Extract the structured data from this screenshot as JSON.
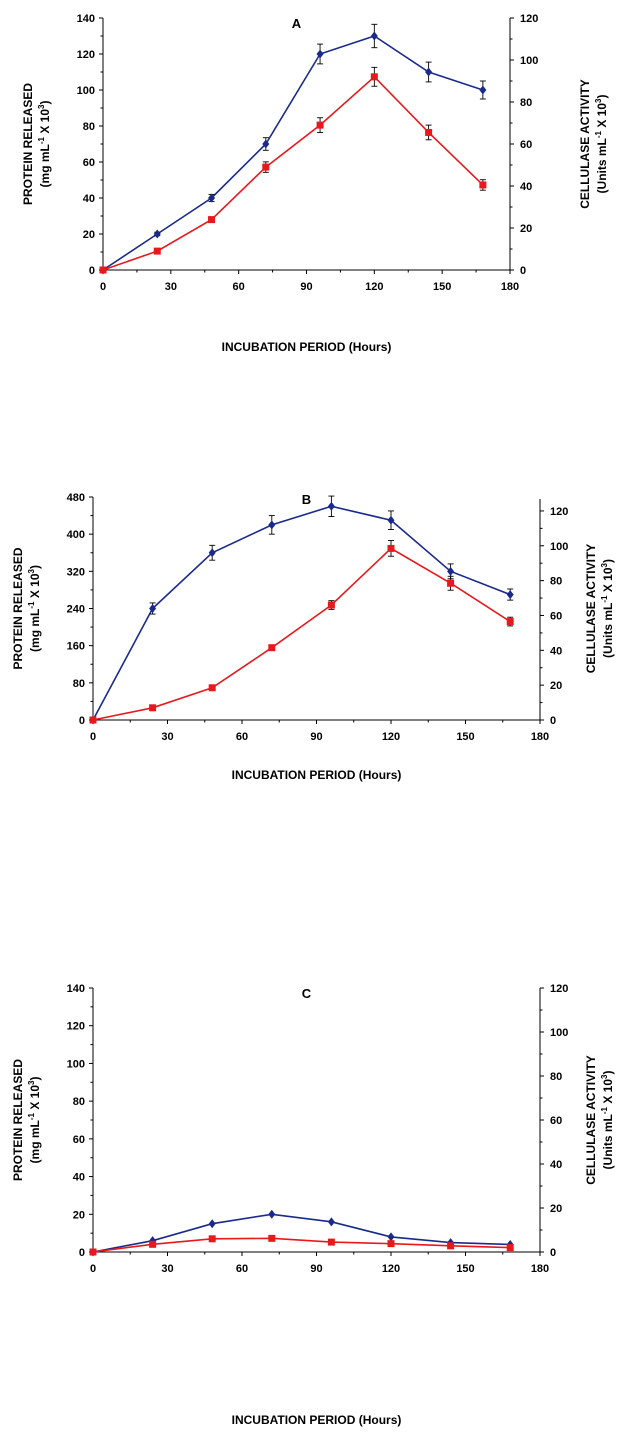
{
  "chart_data": [
    {
      "type": "line",
      "panel_label": "A",
      "xlabel": "INCUBATION PERIOD (Hours)",
      "ylabel": [
        "PROTEIN RELEASED",
        "(mg mL",
        "-1",
        " X 10",
        "3",
        ")"
      ],
      "y2label": [
        "CELLULASE ACTIVITY",
        "(Units mL",
        "-1",
        " X 10",
        "3",
        ")"
      ],
      "xlim": [
        0,
        180
      ],
      "xticks": [
        0,
        30,
        60,
        90,
        120,
        150,
        180
      ],
      "ylim": [
        0,
        140
      ],
      "yticks": [
        0,
        20,
        40,
        60,
        80,
        100,
        120,
        140
      ],
      "y2lim": [
        0,
        120
      ],
      "y2ticks": [
        0,
        20,
        40,
        60,
        80,
        100,
        120
      ],
      "x": [
        0,
        24,
        48,
        72,
        96,
        120,
        144,
        168
      ],
      "series": [
        {
          "axis": "left",
          "color": "#1a2a8c",
          "marker": "diamond",
          "values": [
            0,
            20,
            40,
            70,
            120,
            130,
            110,
            100
          ],
          "errors": [
            0,
            1,
            2,
            3.5,
            5.5,
            6.5,
            5.5,
            5
          ]
        },
        {
          "axis": "right",
          "color": "#e8191d",
          "marker": "square",
          "values": [
            0,
            9,
            24,
            49,
            69,
            92,
            65.5,
            40.5
          ],
          "errors": [
            0,
            0.5,
            1,
            2.5,
            3.5,
            4.5,
            3.5,
            2.5
          ]
        }
      ]
    },
    {
      "type": "line",
      "panel_label": "B",
      "xlabel": "INCUBATION PERIOD (Hours)",
      "ylabel": [
        "PROTEIN RELEASED",
        "(mg mL",
        "-1",
        " X 10",
        "3",
        ")"
      ],
      "y2label": [
        "CELLULASE ACTIVITY",
        "(Units mL",
        "-1",
        " X 10",
        "3",
        ")"
      ],
      "xlim": [
        0,
        180
      ],
      "xticks": [
        0,
        30,
        60,
        90,
        120,
        150,
        180
      ],
      "ylim": [
        0,
        480
      ],
      "yticks": [
        0,
        80,
        160,
        240,
        320,
        400,
        480
      ],
      "y2lim": [
        0,
        128
      ],
      "y2ticks": [
        0,
        20,
        40,
        60,
        80,
        100,
        120
      ],
      "x": [
        0,
        24,
        48,
        72,
        96,
        120,
        144,
        168
      ],
      "series": [
        {
          "axis": "left",
          "color": "#1a2a8c",
          "marker": "diamond",
          "values": [
            0,
            240,
            360,
            420,
            460,
            430,
            320,
            270
          ],
          "errors": [
            0,
            12,
            16,
            20,
            22,
            20,
            16,
            12
          ]
        },
        {
          "axis": "right",
          "color": "#e8191d",
          "marker": "square",
          "values": [
            0,
            7,
            18.5,
            41.5,
            66,
            98.5,
            78.5,
            56.5
          ],
          "errors": [
            0,
            0.5,
            0.5,
            1.5,
            2.5,
            4.5,
            4,
            2.5
          ]
        }
      ]
    },
    {
      "type": "line",
      "panel_label": "C",
      "xlabel": "INCUBATION PERIOD (Hours)",
      "ylabel": [
        "PROTEIN RELEASED",
        "(mg mL",
        "-1",
        " X 10",
        "3",
        ")"
      ],
      "y2label": [
        "CELLULASE ACTIVITY",
        "(Units mL",
        "-1",
        " X 10",
        "3",
        ")"
      ],
      "xlim": [
        0,
        180
      ],
      "xticks": [
        0,
        30,
        60,
        90,
        120,
        150,
        180
      ],
      "ylim": [
        0,
        140
      ],
      "yticks": [
        0,
        20,
        40,
        60,
        80,
        100,
        120,
        140
      ],
      "y2lim": [
        0,
        120
      ],
      "y2ticks": [
        0,
        20,
        40,
        60,
        80,
        100,
        120
      ],
      "x": [
        0,
        24,
        48,
        72,
        96,
        120,
        144,
        168
      ],
      "series": [
        {
          "axis": "left",
          "color": "#1a2a8c",
          "marker": "diamond",
          "values": [
            0,
            6,
            15,
            20,
            16,
            8,
            5,
            4
          ],
          "errors": [
            0,
            0,
            0,
            0,
            0,
            0,
            0,
            0
          ]
        },
        {
          "axis": "right",
          "color": "#e8191d",
          "marker": "square",
          "values": [
            0,
            3.5,
            6,
            6.2,
            4.5,
            3.8,
            2.8,
            2
          ],
          "errors": [
            0,
            0,
            0,
            0,
            0,
            0,
            0,
            0
          ]
        }
      ]
    }
  ]
}
